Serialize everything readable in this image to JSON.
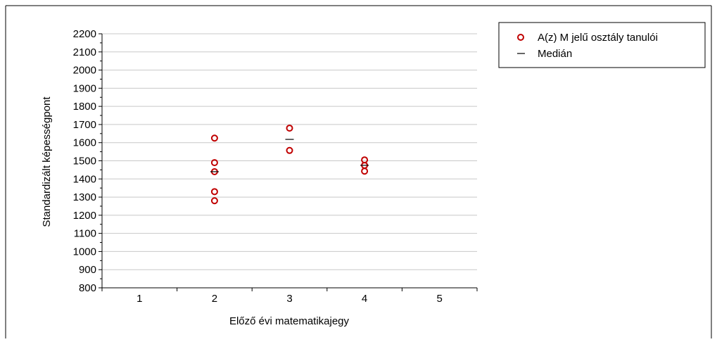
{
  "chart_data": {
    "type": "scatter",
    "xlabel": "Előző évi matematikajegy",
    "ylabel": "Standardizált képességpont",
    "xlim": [
      0.5,
      5.5
    ],
    "ylim": [
      800,
      2200
    ],
    "x_ticks": [
      "1",
      "2",
      "3",
      "4",
      "5"
    ],
    "y_ticks": [
      800,
      900,
      1000,
      1100,
      1200,
      1300,
      1400,
      1500,
      1600,
      1700,
      1800,
      1900,
      2000,
      2100,
      2200
    ],
    "grid": true,
    "legend_position": "top-right",
    "series": [
      {
        "name": "A(z) M jelű osztály tanulói",
        "marker": "open-circle",
        "color": "#c00000",
        "points": [
          {
            "x": 2,
            "y": 1625
          },
          {
            "x": 2,
            "y": 1490
          },
          {
            "x": 2,
            "y": 1440
          },
          {
            "x": 2,
            "y": 1330
          },
          {
            "x": 2,
            "y": 1280
          },
          {
            "x": 3,
            "y": 1680
          },
          {
            "x": 3,
            "y": 1557
          },
          {
            "x": 4,
            "y": 1505
          },
          {
            "x": 4,
            "y": 1475
          },
          {
            "x": 4,
            "y": 1443
          }
        ]
      },
      {
        "name": "Medián",
        "marker": "dash",
        "color": "#000000",
        "points": [
          {
            "x": 2,
            "y": 1440
          },
          {
            "x": 3,
            "y": 1618
          },
          {
            "x": 4,
            "y": 1475
          }
        ]
      }
    ]
  }
}
